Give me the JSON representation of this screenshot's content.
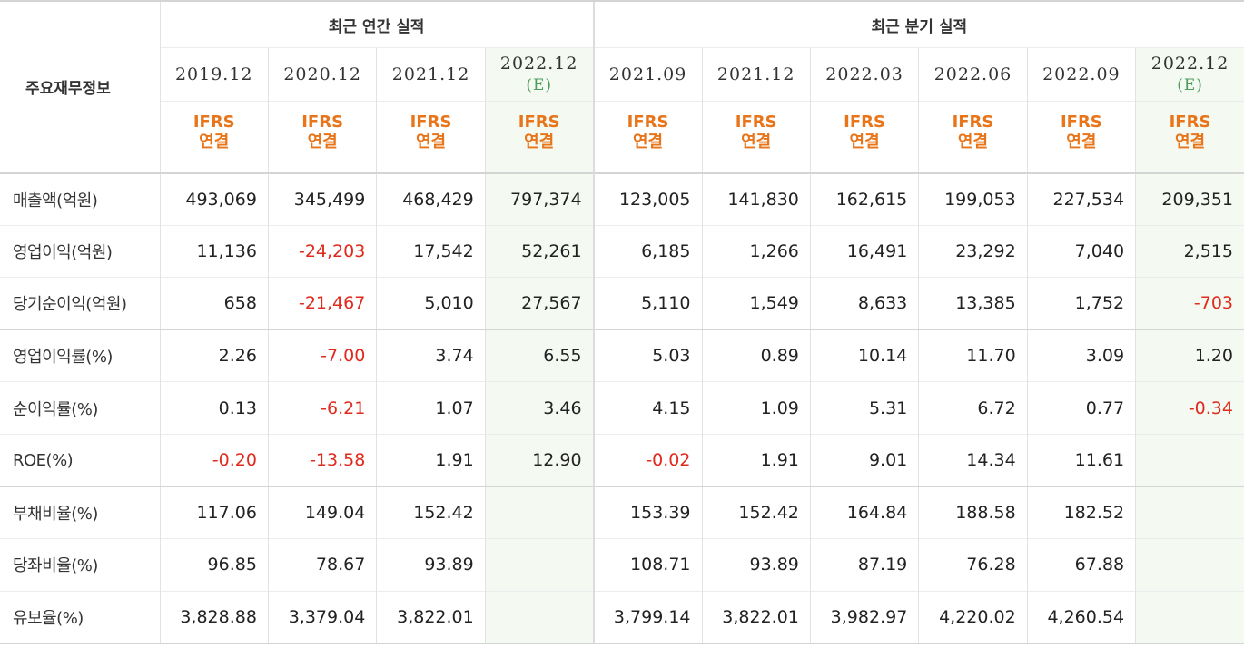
{
  "table": {
    "label_header": "주요재무정보",
    "groups": {
      "annual": "최근 연간 실적",
      "quarterly": "최근 분기 실적"
    },
    "periods": [
      {
        "date": "2019.12",
        "est": ""
      },
      {
        "date": "2020.12",
        "est": ""
      },
      {
        "date": "2021.12",
        "est": ""
      },
      {
        "date": "2022.12",
        "est": "(E)"
      },
      {
        "date": "2021.09",
        "est": ""
      },
      {
        "date": "2021.12",
        "est": ""
      },
      {
        "date": "2022.03",
        "est": ""
      },
      {
        "date": "2022.06",
        "est": ""
      },
      {
        "date": "2022.09",
        "est": ""
      },
      {
        "date": "2022.12",
        "est": "(E)"
      }
    ],
    "ifrs_line1": "IFRS",
    "ifrs_line2": "연결",
    "rows": [
      {
        "label": "매출액(억원)",
        "values": [
          "493,069",
          "345,499",
          "468,429",
          "797,374",
          "123,005",
          "141,830",
          "162,615",
          "199,053",
          "227,534",
          "209,351"
        ]
      },
      {
        "label": "영업이익(억원)",
        "values": [
          "11,136",
          "-24,203",
          "17,542",
          "52,261",
          "6,185",
          "1,266",
          "16,491",
          "23,292",
          "7,040",
          "2,515"
        ]
      },
      {
        "label": "당기순이익(억원)",
        "values": [
          "658",
          "-21,467",
          "5,010",
          "27,567",
          "5,110",
          "1,549",
          "8,633",
          "13,385",
          "1,752",
          "-703"
        ]
      },
      {
        "label": "영업이익률(%)",
        "values": [
          "2.26",
          "-7.00",
          "3.74",
          "6.55",
          "5.03",
          "0.89",
          "10.14",
          "11.70",
          "3.09",
          "1.20"
        ]
      },
      {
        "label": "순이익률(%)",
        "values": [
          "0.13",
          "-6.21",
          "1.07",
          "3.46",
          "4.15",
          "1.09",
          "5.31",
          "6.72",
          "0.77",
          "-0.34"
        ]
      },
      {
        "label": "ROE(%)",
        "values": [
          "-0.20",
          "-13.58",
          "1.91",
          "12.90",
          "-0.02",
          "1.91",
          "9.01",
          "14.34",
          "11.61",
          ""
        ]
      },
      {
        "label": "부채비율(%)",
        "values": [
          "117.06",
          "149.04",
          "152.42",
          "",
          "153.39",
          "152.42",
          "164.84",
          "188.58",
          "182.52",
          ""
        ]
      },
      {
        "label": "당좌비율(%)",
        "values": [
          "96.85",
          "78.67",
          "93.89",
          "",
          "108.71",
          "93.89",
          "87.19",
          "76.28",
          "67.88",
          ""
        ]
      },
      {
        "label": "유보율(%)",
        "values": [
          "3,828.88",
          "3,379.04",
          "3,822.01",
          "",
          "3,799.14",
          "3,822.01",
          "3,982.97",
          "4,220.02",
          "4,260.54",
          ""
        ]
      }
    ],
    "colors": {
      "negative": "#e02a1d",
      "ifrs": "#e8751a",
      "estimate_bg": "#f4f9f1",
      "estimate_text": "#4a9d5a"
    }
  }
}
